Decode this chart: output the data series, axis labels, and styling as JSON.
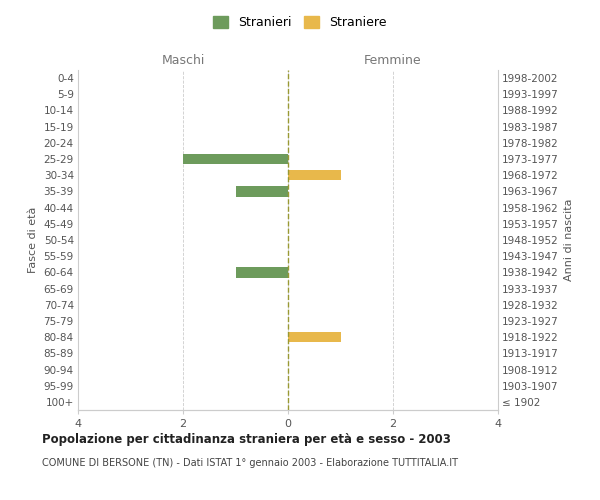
{
  "age_groups": [
    "100+",
    "95-99",
    "90-94",
    "85-89",
    "80-84",
    "75-79",
    "70-74",
    "65-69",
    "60-64",
    "55-59",
    "50-54",
    "45-49",
    "40-44",
    "35-39",
    "30-34",
    "25-29",
    "20-24",
    "15-19",
    "10-14",
    "5-9",
    "0-4"
  ],
  "birth_years": [
    "≤ 1902",
    "1903-1907",
    "1908-1912",
    "1913-1917",
    "1918-1922",
    "1923-1927",
    "1928-1932",
    "1933-1937",
    "1938-1942",
    "1943-1947",
    "1948-1952",
    "1953-1957",
    "1958-1962",
    "1963-1967",
    "1968-1972",
    "1973-1977",
    "1978-1982",
    "1983-1987",
    "1988-1992",
    "1993-1997",
    "1998-2002"
  ],
  "maschi": [
    0,
    0,
    0,
    0,
    0,
    0,
    0,
    0,
    1,
    0,
    0,
    0,
    0,
    1,
    0,
    2,
    0,
    0,
    0,
    0,
    0
  ],
  "femmine": [
    0,
    0,
    0,
    0,
    1,
    0,
    0,
    0,
    0,
    0,
    0,
    0,
    0,
    0,
    1,
    0,
    0,
    0,
    0,
    0,
    0
  ],
  "maschi_color": "#6d9b5c",
  "femmine_color": "#e8b84b",
  "title": "Popolazione per cittadinanza straniera per età e sesso - 2003",
  "subtitle": "COMUNE DI BERSONE (TN) - Dati ISTAT 1° gennaio 2003 - Elaborazione TUTTITALIA.IT",
  "xlabel_left": "Maschi",
  "xlabel_right": "Femmine",
  "ylabel_left": "Fasce di età",
  "ylabel_right": "Anni di nascita",
  "legend_maschi": "Stranieri",
  "legend_femmine": "Straniere",
  "xlim": [
    -4,
    4
  ],
  "xticks": [
    -4,
    -2,
    0,
    2,
    4
  ],
  "xtick_labels": [
    "4",
    "2",
    "0",
    "2",
    "4"
  ],
  "background_color": "#ffffff",
  "grid_color": "#cccccc",
  "center_line_color": "#999933",
  "bar_height": 0.65
}
